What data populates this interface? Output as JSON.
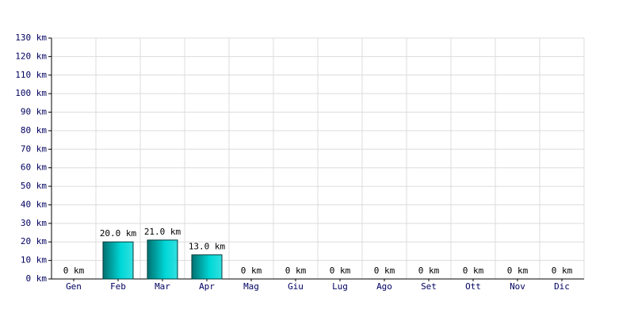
{
  "chart_data": {
    "type": "bar",
    "categories": [
      "Gen",
      "Feb",
      "Mar",
      "Apr",
      "Mag",
      "Giu",
      "Lug",
      "Ago",
      "Set",
      "Ott",
      "Nov",
      "Dic"
    ],
    "values": [
      0,
      20,
      21,
      13,
      0,
      0,
      0,
      0,
      0,
      0,
      0,
      0
    ],
    "value_labels": [
      "0 km",
      "20.0 km",
      "21.0 km",
      "13.0 km",
      "0 km",
      "0 km",
      "0 km",
      "0 km",
      "0 km",
      "0 km",
      "0 km",
      "0 km"
    ],
    "color": "#00d8d8",
    "ylim": [
      0,
      130
    ],
    "yticks": [
      {
        "value": 0,
        "label": "0 km"
      },
      {
        "value": 10,
        "label": "10 km"
      },
      {
        "value": 20,
        "label": "20 km"
      },
      {
        "value": 30,
        "label": "30 km"
      },
      {
        "value": 40,
        "label": "40 km"
      },
      {
        "value": 50,
        "label": "50 km"
      },
      {
        "value": 60,
        "label": "60 km"
      },
      {
        "value": 70,
        "label": "70 km"
      },
      {
        "value": 80,
        "label": "80 km"
      },
      {
        "value": 90,
        "label": "90 km"
      },
      {
        "value": 100,
        "label": "100 km"
      },
      {
        "value": 110,
        "label": "110 km"
      },
      {
        "value": 120,
        "label": "120 km"
      },
      {
        "value": 130,
        "label": "130 km"
      }
    ],
    "grid": true
  }
}
